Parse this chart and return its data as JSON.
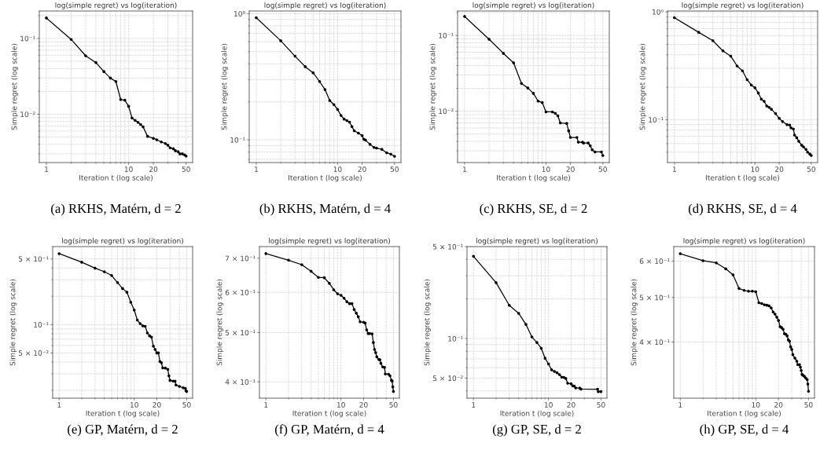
{
  "chart_data": [
    {
      "type": "line",
      "title": "log(simple regret) vs log(iteration)",
      "xlabel": "Iteration t (log scale)",
      "ylabel": "Simple regret (log scale)",
      "log": "xy",
      "grid": true,
      "marker": "circle",
      "line_style": "solid",
      "x": [
        1,
        2,
        3,
        4,
        5,
        6,
        7,
        8,
        9,
        10,
        11,
        12,
        13,
        14,
        15,
        17,
        20,
        22,
        25,
        28,
        30,
        32,
        35,
        37,
        40,
        42,
        45,
        48,
        50
      ],
      "series": [
        {
          "color": "#000000",
          "values": [
            0.186,
            0.097,
            0.059,
            0.048,
            0.0365,
            0.03,
            0.027,
            0.0156,
            0.0153,
            0.0127,
            0.0089,
            0.0083,
            0.0078,
            0.0073,
            0.0068,
            0.0051,
            0.0048,
            0.0046,
            0.0043,
            0.0041,
            0.0039,
            0.0036,
            0.0035,
            0.0033,
            0.0032,
            0.003,
            0.003,
            0.0029,
            0.0028
          ]
        }
      ],
      "xlim": [
        0.82,
        60
      ],
      "xticks": [
        1,
        {
          "value": 2,
          "label": null
        },
        {
          "value": 3,
          "label": null
        },
        {
          "value": 4,
          "label": null
        },
        {
          "value": 5,
          "label": null
        },
        {
          "value": 6,
          "label": null
        },
        {
          "value": 7,
          "label": null
        },
        {
          "value": 8,
          "label": null
        },
        {
          "value": 9,
          "label": null
        },
        10,
        20,
        {
          "value": 30,
          "label": null
        },
        {
          "value": 40,
          "label": null
        },
        50
      ],
      "ylim": [
        0.0023,
        0.23
      ],
      "yticks": [
        {
          "value": 0.003,
          "label": null
        },
        {
          "value": 0.004,
          "label": null
        },
        {
          "value": 0.005,
          "label": null
        },
        {
          "value": 0.006,
          "label": null
        },
        {
          "value": 0.007,
          "label": null
        },
        {
          "value": 0.008,
          "label": null
        },
        {
          "value": 0.009,
          "label": null
        },
        {
          "value": 0.01,
          "label": "10⁻²"
        },
        {
          "value": 0.02,
          "label": null
        },
        {
          "value": 0.03,
          "label": null
        },
        {
          "value": 0.04,
          "label": null
        },
        {
          "value": 0.05,
          "label": null
        },
        {
          "value": 0.06,
          "label": null
        },
        {
          "value": 0.07,
          "label": null
        },
        {
          "value": 0.08,
          "label": null
        },
        {
          "value": 0.09,
          "label": null
        },
        {
          "value": 0.1,
          "label": "10⁻¹"
        },
        {
          "value": 0.2,
          "label": null
        }
      ],
      "annotations": [
        "(a) RKHS, Matérn, d = 2"
      ]
    },
    {
      "type": "line",
      "title": "log(simple regret) vs log(iteration)",
      "xlabel": "Iteration t (log scale)",
      "ylabel": "Simple regret (log scale)",
      "log": "xy",
      "grid": true,
      "marker": "circle",
      "line_style": "solid",
      "x": [
        1,
        2,
        3,
        4,
        5,
        6,
        7,
        8,
        9,
        10,
        11,
        12,
        13,
        14,
        15,
        16,
        18,
        20,
        21,
        22,
        25,
        28,
        30,
        35,
        40,
        45,
        50
      ],
      "series": [
        {
          "color": "#000000",
          "values": [
            0.93,
            0.61,
            0.46,
            0.38,
            0.34,
            0.29,
            0.25,
            0.205,
            0.19,
            0.174,
            0.156,
            0.146,
            0.142,
            0.138,
            0.127,
            0.118,
            0.113,
            0.108,
            0.101,
            0.0995,
            0.092,
            0.087,
            0.086,
            0.084,
            0.079,
            0.077,
            0.074
          ]
        }
      ],
      "xlim": [
        0.82,
        60
      ],
      "xticks": [
        1,
        {
          "value": 2,
          "label": null
        },
        {
          "value": 3,
          "label": null
        },
        {
          "value": 4,
          "label": null
        },
        {
          "value": 5,
          "label": null
        },
        {
          "value": 6,
          "label": null
        },
        {
          "value": 7,
          "label": null
        },
        {
          "value": 8,
          "label": null
        },
        {
          "value": 9,
          "label": null
        },
        10,
        20,
        {
          "value": 30,
          "label": null
        },
        {
          "value": 40,
          "label": null
        },
        50
      ],
      "ylim": [
        0.066,
        1.05
      ],
      "yticks": [
        {
          "value": 0.07,
          "label": null
        },
        {
          "value": 0.08,
          "label": null
        },
        {
          "value": 0.09,
          "label": null
        },
        {
          "value": 0.1,
          "label": "10⁻¹"
        },
        {
          "value": 0.2,
          "label": null
        },
        {
          "value": 0.3,
          "label": null
        },
        {
          "value": 0.4,
          "label": null
        },
        {
          "value": 0.5,
          "label": null
        },
        {
          "value": 0.6,
          "label": null
        },
        {
          "value": 0.7,
          "label": null
        },
        {
          "value": 0.8,
          "label": null
        },
        {
          "value": 0.9,
          "label": null
        },
        {
          "value": 1,
          "label": "10⁰"
        }
      ],
      "annotations": [
        "(b) RKHS, Matérn, d = 4"
      ]
    },
    {
      "type": "line",
      "title": "log(simple regret) vs log(iteration)",
      "xlabel": "Iteration t (log scale)",
      "ylabel": "Simple regret (log scale)",
      "log": "xy",
      "grid": true,
      "marker": "circle",
      "line_style": "solid",
      "x": [
        1,
        2,
        3,
        4,
        5,
        6,
        7,
        8,
        9,
        10,
        12,
        13,
        14,
        15,
        18,
        19,
        20,
        24,
        25,
        28,
        29,
        33,
        35,
        37,
        40,
        48,
        50
      ],
      "series": [
        {
          "color": "#000000",
          "values": [
            0.178,
            0.089,
            0.058,
            0.0435,
            0.0232,
            0.0202,
            0.0172,
            0.0136,
            0.013,
            0.0098,
            0.0098,
            0.0094,
            0.0087,
            0.007,
            0.0069,
            0.0055,
            0.0045,
            0.0045,
            0.0039,
            0.0039,
            0.0038,
            0.0038,
            0.0035,
            0.0031,
            0.0029,
            0.0029,
            0.0026
          ]
        }
      ],
      "xlim": [
        0.82,
        60
      ],
      "xticks": [
        1,
        {
          "value": 2,
          "label": null
        },
        {
          "value": 3,
          "label": null
        },
        {
          "value": 4,
          "label": null
        },
        {
          "value": 5,
          "label": null
        },
        {
          "value": 6,
          "label": null
        },
        {
          "value": 7,
          "label": null
        },
        {
          "value": 8,
          "label": null
        },
        {
          "value": 9,
          "label": null
        },
        10,
        20,
        {
          "value": 30,
          "label": null
        },
        {
          "value": 40,
          "label": null
        },
        50
      ],
      "ylim": [
        0.0021,
        0.21
      ],
      "yticks": [
        {
          "value": 0.003,
          "label": null
        },
        {
          "value": 0.004,
          "label": null
        },
        {
          "value": 0.005,
          "label": null
        },
        {
          "value": 0.006,
          "label": null
        },
        {
          "value": 0.007,
          "label": null
        },
        {
          "value": 0.008,
          "label": null
        },
        {
          "value": 0.009,
          "label": null
        },
        {
          "value": 0.01,
          "label": "10⁻²"
        },
        {
          "value": 0.02,
          "label": null
        },
        {
          "value": 0.03,
          "label": null
        },
        {
          "value": 0.04,
          "label": null
        },
        {
          "value": 0.05,
          "label": null
        },
        {
          "value": 0.06,
          "label": null
        },
        {
          "value": 0.07,
          "label": null
        },
        {
          "value": 0.08,
          "label": null
        },
        {
          "value": 0.09,
          "label": null
        },
        {
          "value": 0.1,
          "label": "10⁻¹"
        },
        {
          "value": 0.2,
          "label": null
        }
      ],
      "annotations": [
        "(c) RKHS, SE, d = 2"
      ]
    },
    {
      "type": "line",
      "title": "log(simple regret) vs log(iteration)",
      "xlabel": "Iteration t (log scale)",
      "ylabel": "Simple regret (log scale)",
      "log": "xy",
      "grid": true,
      "marker": "circle",
      "line_style": "solid",
      "x": [
        1,
        2,
        3,
        4,
        5,
        6,
        7,
        8,
        9,
        10,
        11,
        12,
        13,
        14,
        15,
        16,
        18,
        20,
        22,
        25,
        27,
        28,
        30,
        31,
        33,
        35,
        38,
        40,
        43,
        45,
        48,
        50
      ],
      "series": [
        {
          "color": "#000000",
          "values": [
            0.885,
            0.647,
            0.541,
            0.435,
            0.389,
            0.315,
            0.284,
            0.235,
            0.21,
            0.198,
            0.177,
            0.155,
            0.148,
            0.134,
            0.13,
            0.125,
            0.114,
            0.103,
            0.096,
            0.09,
            0.089,
            0.084,
            0.082,
            0.072,
            0.068,
            0.063,
            0.058,
            0.056,
            0.053,
            0.05,
            0.048,
            0.0465
          ]
        }
      ],
      "xlim": [
        0.82,
        60
      ],
      "xticks": [
        1,
        {
          "value": 2,
          "label": null
        },
        {
          "value": 3,
          "label": null
        },
        {
          "value": 4,
          "label": null
        },
        {
          "value": 5,
          "label": null
        },
        {
          "value": 6,
          "label": null
        },
        {
          "value": 7,
          "label": null
        },
        {
          "value": 8,
          "label": null
        },
        {
          "value": 9,
          "label": null
        },
        10,
        20,
        {
          "value": 30,
          "label": null
        },
        {
          "value": 40,
          "label": null
        },
        50
      ],
      "ylim": [
        0.04,
        1.02
      ],
      "yticks": [
        {
          "value": 0.05,
          "label": null
        },
        {
          "value": 0.06,
          "label": null
        },
        {
          "value": 0.07,
          "label": null
        },
        {
          "value": 0.08,
          "label": null
        },
        {
          "value": 0.09,
          "label": null
        },
        {
          "value": 0.1,
          "label": "10⁻¹"
        },
        {
          "value": 0.2,
          "label": null
        },
        {
          "value": 0.3,
          "label": null
        },
        {
          "value": 0.4,
          "label": null
        },
        {
          "value": 0.5,
          "label": null
        },
        {
          "value": 0.6,
          "label": null
        },
        {
          "value": 0.7,
          "label": null
        },
        {
          "value": 0.8,
          "label": null
        },
        {
          "value": 0.9,
          "label": null
        },
        {
          "value": 1,
          "label": "10⁰"
        }
      ],
      "annotations": [
        "(d) RKHS, SE, d = 4"
      ]
    },
    {
      "type": "line",
      "title": "log(simple regret) vs log(iteration)",
      "xlabel": "Iteration t (log scale)",
      "ylabel": "Simple regret (log scale)",
      "log": "xy",
      "grid": true,
      "marker": "circle",
      "line_style": "solid",
      "x": [
        1,
        2,
        3,
        4,
        5,
        6,
        7,
        8,
        9,
        10,
        11,
        12,
        13,
        14,
        15,
        16,
        17,
        18,
        19,
        20,
        21,
        22,
        23,
        24,
        26,
        28,
        29,
        30,
        33,
        35,
        36,
        40,
        45,
        48,
        49,
        50
      ],
      "series": [
        {
          "color": "#000000",
          "values": [
            0.569,
            0.461,
            0.399,
            0.365,
            0.333,
            0.28,
            0.242,
            0.221,
            0.173,
            0.143,
            0.112,
            0.1025,
            0.097,
            0.096,
            0.0815,
            0.076,
            0.0736,
            0.059,
            0.0543,
            0.05,
            0.05,
            0.0406,
            0.0394,
            0.0346,
            0.0345,
            0.0335,
            0.0285,
            0.0255,
            0.0251,
            0.025,
            0.0228,
            0.022,
            0.0213,
            0.021,
            0.0198,
            0.0194
          ]
        }
      ],
      "xlim": [
        0.82,
        60
      ],
      "xticks": [
        1,
        {
          "value": 2,
          "label": null
        },
        {
          "value": 3,
          "label": null
        },
        {
          "value": 4,
          "label": null
        },
        {
          "value": 5,
          "label": null
        },
        {
          "value": 6,
          "label": null
        },
        {
          "value": 7,
          "label": null
        },
        {
          "value": 8,
          "label": null
        },
        {
          "value": 9,
          "label": null
        },
        10,
        20,
        {
          "value": 30,
          "label": null
        },
        {
          "value": 40,
          "label": null
        },
        50
      ],
      "ylim": [
        0.0165,
        0.676
      ],
      "yticks": [
        {
          "value": 0.02,
          "label": null
        },
        {
          "value": 0.03,
          "label": null
        },
        {
          "value": 0.04,
          "label": null
        },
        {
          "value": 0.05,
          "label": "5 × 10⁻²"
        },
        {
          "value": 0.06,
          "label": null
        },
        {
          "value": 0.07,
          "label": null
        },
        {
          "value": 0.08,
          "label": null
        },
        {
          "value": 0.09,
          "label": null
        },
        {
          "value": 0.1,
          "label": "10⁻¹"
        },
        {
          "value": 0.2,
          "label": null
        },
        {
          "value": 0.3,
          "label": null
        },
        {
          "value": 0.4,
          "label": null
        },
        {
          "value": 0.5,
          "label": "5 × 10⁻¹"
        }
      ],
      "annotations": [
        "(e) GP, Matérn, d = 2"
      ]
    },
    {
      "type": "line",
      "title": "log(simple regret) vs log(iteration)",
      "xlabel": "Iteration t (log scale)",
      "ylabel": "Simple regret (log scale)",
      "log": "xy",
      "grid": true,
      "marker": "circle",
      "line_style": "solid",
      "x": [
        1,
        2,
        3,
        4,
        5,
        6,
        7,
        8,
        9,
        10,
        11,
        12,
        13,
        14,
        15,
        16,
        17,
        18,
        20,
        21,
        22,
        23,
        24,
        26,
        27,
        28,
        29,
        30,
        32,
        33,
        34,
        36,
        38,
        39,
        43,
        45,
        47,
        48,
        49,
        50
      ],
      "series": [
        {
          "color": "#000000",
          "values": [
            0.715,
            0.694,
            0.68,
            0.66,
            0.642,
            0.641,
            0.625,
            0.607,
            0.596,
            0.592,
            0.584,
            0.575,
            0.57,
            0.57,
            0.555,
            0.546,
            0.537,
            0.525,
            0.524,
            0.522,
            0.506,
            0.498,
            0.498,
            0.497,
            0.478,
            0.463,
            0.4565,
            0.448,
            0.4425,
            0.442,
            0.435,
            0.428,
            0.427,
            0.4145,
            0.414,
            0.411,
            0.403,
            0.4015,
            0.391,
            0.383
          ]
        }
      ],
      "xlim": [
        0.82,
        60
      ],
      "xticks": [
        1,
        {
          "value": 2,
          "label": null
        },
        {
          "value": 3,
          "label": null
        },
        {
          "value": 4,
          "label": null
        },
        {
          "value": 5,
          "label": null
        },
        {
          "value": 6,
          "label": null
        },
        {
          "value": 7,
          "label": null
        },
        {
          "value": 8,
          "label": null
        },
        {
          "value": 9,
          "label": null
        },
        10,
        20,
        {
          "value": 30,
          "label": null
        },
        {
          "value": 40,
          "label": null
        },
        50
      ],
      "ylim": [
        0.3715,
        0.738
      ],
      "yticks": [
        {
          "value": 0.4,
          "label": "4 × 10⁻¹"
        },
        {
          "value": 0.5,
          "label": "5 × 10⁻¹"
        },
        {
          "value": 0.6,
          "label": "6 × 10⁻¹"
        },
        {
          "value": 0.7,
          "label": "7 × 10⁻¹"
        }
      ],
      "annotations": [
        "(f) GP, Matérn, d = 4"
      ]
    },
    {
      "type": "line",
      "title": "log(simple regret) vs log(iteration)",
      "xlabel": "Iteration t (log scale)",
      "ylabel": "Simple regret (log scale)",
      "log": "xy",
      "grid": true,
      "marker": "circle",
      "line_style": "solid",
      "x": [
        1,
        2,
        3,
        4,
        5,
        6,
        7,
        8,
        9,
        10,
        11,
        12,
        13,
        14,
        15,
        16,
        17,
        18,
        20,
        21,
        22,
        23,
        26,
        27,
        45,
        46,
        50
      ],
      "series": [
        {
          "color": "#000000",
          "values": [
            0.422,
            0.266,
            0.179,
            0.1555,
            0.128,
            0.1028,
            0.0933,
            0.0843,
            0.0708,
            0.064,
            0.0578,
            0.0562,
            0.0549,
            0.0532,
            0.0508,
            0.0507,
            0.0497,
            0.0457,
            0.0453,
            0.0437,
            0.0435,
            0.0421,
            0.042,
            0.0413,
            0.0412,
            0.0395,
            0.0395
          ]
        }
      ],
      "xlim": [
        0.82,
        60
      ],
      "xticks": [
        1,
        {
          "value": 2,
          "label": null
        },
        {
          "value": 3,
          "label": null
        },
        {
          "value": 4,
          "label": null
        },
        {
          "value": 5,
          "label": null
        },
        {
          "value": 6,
          "label": null
        },
        {
          "value": 7,
          "label": null
        },
        {
          "value": 8,
          "label": null
        },
        {
          "value": 9,
          "label": null
        },
        10,
        20,
        {
          "value": 30,
          "label": null
        },
        {
          "value": 40,
          "label": null
        },
        50
      ],
      "ylim": [
        0.0352,
        0.5
      ],
      "yticks": [
        {
          "value": 0.04,
          "label": null
        },
        {
          "value": 0.05,
          "label": "5 × 10⁻²"
        },
        {
          "value": 0.06,
          "label": null
        },
        {
          "value": 0.07,
          "label": null
        },
        {
          "value": 0.08,
          "label": null
        },
        {
          "value": 0.09,
          "label": null
        },
        {
          "value": 0.1,
          "label": "10⁻¹"
        },
        {
          "value": 0.2,
          "label": null
        },
        {
          "value": 0.3,
          "label": null
        },
        {
          "value": 0.4,
          "label": null
        },
        {
          "value": 0.5,
          "label": "5 × 10⁻¹"
        }
      ],
      "annotations": [
        "(g) GP, SE, d = 2"
      ]
    },
    {
      "type": "line",
      "title": "log(simple regret) vs log(iteration)",
      "xlabel": "Iteration t (log scale)",
      "ylabel": "Simple regret (log scale)",
      "log": "xy",
      "grid": true,
      "marker": "circle",
      "line_style": "solid",
      "x": [
        1,
        2,
        3,
        4,
        5,
        6,
        7,
        8,
        9,
        10,
        11,
        12,
        13,
        14,
        15,
        16,
        17,
        18,
        19,
        20,
        21,
        22,
        23,
        24,
        25,
        26,
        27,
        28,
        29,
        30,
        31,
        33,
        35,
        36,
        38,
        39,
        40,
        41,
        42,
        44,
        46,
        48,
        49,
        50
      ],
      "series": [
        {
          "color": "#000000",
          "values": [
            0.6225,
            0.601,
            0.5945,
            0.577,
            0.56,
            0.523,
            0.518,
            0.516,
            0.516,
            0.5146,
            0.487,
            0.485,
            0.482,
            0.481,
            0.4795,
            0.4745,
            0.465,
            0.46,
            0.453,
            0.4455,
            0.432,
            0.43,
            0.4265,
            0.417,
            0.416,
            0.4126,
            0.4045,
            0.4015,
            0.3905,
            0.3855,
            0.3755,
            0.369,
            0.3634,
            0.3573,
            0.3573,
            0.3527,
            0.347,
            0.34,
            0.339,
            0.337,
            0.334,
            0.3315,
            0.324,
            0.3126
          ]
        }
      ],
      "xlim": [
        0.82,
        60
      ],
      "xticks": [
        1,
        {
          "value": 2,
          "label": null
        },
        {
          "value": 3,
          "label": null
        },
        {
          "value": 4,
          "label": null
        },
        {
          "value": 5,
          "label": null
        },
        {
          "value": 6,
          "label": null
        },
        {
          "value": 7,
          "label": null
        },
        {
          "value": 8,
          "label": null
        },
        {
          "value": 9,
          "label": null
        },
        10,
        20,
        {
          "value": 30,
          "label": null
        },
        {
          "value": 40,
          "label": null
        },
        50
      ],
      "ylim": [
        0.302,
        0.645
      ],
      "yticks": [
        {
          "value": 0.4,
          "label": "4 × 10⁻¹"
        },
        {
          "value": 0.5,
          "label": "5 × 10⁻¹"
        },
        {
          "value": 0.6,
          "label": "6 × 10⁻¹"
        }
      ],
      "annotations": [
        "(h) GP, SE, d = 4"
      ]
    }
  ]
}
